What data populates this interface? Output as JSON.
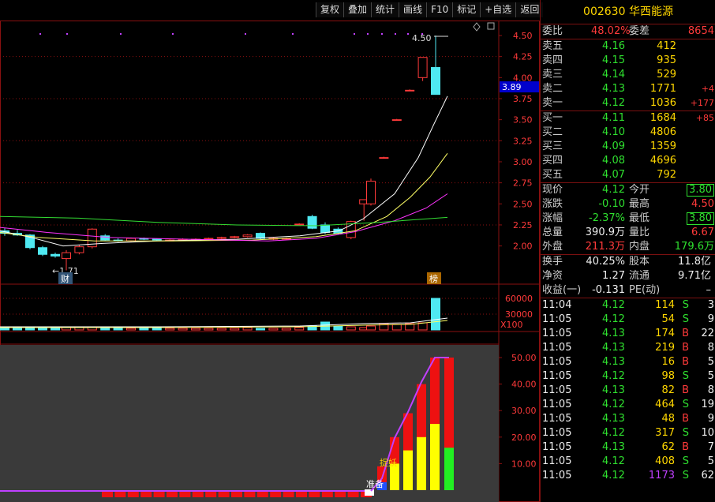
{
  "toolbar": [
    "复权",
    "叠加",
    "统计",
    "画线",
    "F10",
    "标记",
    "+自选",
    "返回"
  ],
  "chart": {
    "price_axis": [
      "4.50",
      "4.25",
      "4.00",
      "3.75",
      "3.50",
      "3.25",
      "3.00",
      "2.75",
      "2.50",
      "2.25",
      "2.00"
    ],
    "current_price_tag": "3.89",
    "high_label": "4.50",
    "low_label": "1.71",
    "badge_cai": "财",
    "badge_bang": "榜",
    "volume_axis": [
      "60000",
      "30000"
    ],
    "volume_unit": "X100",
    "indicator_axis": [
      "50.00",
      "40.00",
      "30.00",
      "20.00",
      "10.00"
    ],
    "label_zhunbei": "准备",
    "label_zhuoyao": "捉妖",
    "colors": {
      "up": "#ff3a3a",
      "down": "#4fe9f2",
      "ma5": "#ffffff",
      "ma10": "#ffff66",
      "ma20": "#ff33ff",
      "ma60": "#33dd33",
      "grid": "#8a1010"
    }
  },
  "quote": {
    "code": "002630",
    "name": "华西能源",
    "weibi_label": "委比",
    "weibi": "48.02%",
    "weicha_label": "委差",
    "weicha": "8654",
    "sell": [
      {
        "label": "卖五",
        "price": "4.16",
        "vol": "412",
        "chg": ""
      },
      {
        "label": "卖四",
        "price": "4.15",
        "vol": "935",
        "chg": ""
      },
      {
        "label": "卖三",
        "price": "4.14",
        "vol": "529",
        "chg": ""
      },
      {
        "label": "卖二",
        "price": "4.13",
        "vol": "1771",
        "chg": "+4"
      },
      {
        "label": "卖一",
        "price": "4.12",
        "vol": "1036",
        "chg": "+177"
      }
    ],
    "buy": [
      {
        "label": "买一",
        "price": "4.11",
        "vol": "1684",
        "chg": "+85"
      },
      {
        "label": "买二",
        "price": "4.10",
        "vol": "4806",
        "chg": ""
      },
      {
        "label": "买三",
        "price": "4.09",
        "vol": "1359",
        "chg": ""
      },
      {
        "label": "买四",
        "price": "4.08",
        "vol": "4696",
        "chg": ""
      },
      {
        "label": "买五",
        "price": "4.07",
        "vol": "792",
        "chg": ""
      }
    ],
    "stats": [
      {
        "l1": "现价",
        "v1": "4.12",
        "l2": "今开",
        "v2": "3.80"
      },
      {
        "l1": "涨跌",
        "v1": "-0.10",
        "l2": "最高",
        "v2": "4.50"
      },
      {
        "l1": "涨幅",
        "v1": "-2.37%",
        "l2": "最低",
        "v2": "3.80"
      },
      {
        "l1": "总量",
        "v1": "390.9万",
        "l2": "量比",
        "v2": "6.67"
      },
      {
        "l1": "外盘",
        "v1": "211.3万",
        "l2": "内盘",
        "v2": "179.6万"
      }
    ],
    "stats2": [
      {
        "l1": "换手",
        "v1": "40.25%",
        "l2": "股本",
        "v2": "11.8亿"
      },
      {
        "l1": "净资",
        "v1": "1.27",
        "l2": "流通",
        "v2": "9.71亿"
      },
      {
        "l1": "收益(一)",
        "v1": "-0.131",
        "l2": "PE(动)",
        "v2": "–"
      }
    ],
    "ticks": [
      {
        "t": "11:04",
        "p": "4.12",
        "v": "114",
        "s": "S",
        "n": "3"
      },
      {
        "t": "11:05",
        "p": "4.12",
        "v": "54",
        "s": "S",
        "n": "9"
      },
      {
        "t": "11:05",
        "p": "4.13",
        "v": "174",
        "s": "B",
        "n": "22"
      },
      {
        "t": "11:05",
        "p": "4.13",
        "v": "219",
        "s": "B",
        "n": "8"
      },
      {
        "t": "11:05",
        "p": "4.13",
        "v": "16",
        "s": "B",
        "n": "5"
      },
      {
        "t": "11:05",
        "p": "4.12",
        "v": "98",
        "s": "S",
        "n": "5"
      },
      {
        "t": "11:05",
        "p": "4.13",
        "v": "82",
        "s": "B",
        "n": "8"
      },
      {
        "t": "11:05",
        "p": "4.12",
        "v": "464",
        "s": "S",
        "n": "19"
      },
      {
        "t": "11:05",
        "p": "4.13",
        "v": "48",
        "s": "B",
        "n": "9"
      },
      {
        "t": "11:05",
        "p": "4.12",
        "v": "317",
        "s": "S",
        "n": "10"
      },
      {
        "t": "11:05",
        "p": "4.13",
        "v": "62",
        "s": "B",
        "n": "7"
      },
      {
        "t": "11:05",
        "p": "4.12",
        "v": "408",
        "s": "S",
        "n": "5"
      },
      {
        "t": "11:05",
        "p": "4.12",
        "v": "1173",
        "s": "S",
        "n": "62"
      }
    ]
  }
}
